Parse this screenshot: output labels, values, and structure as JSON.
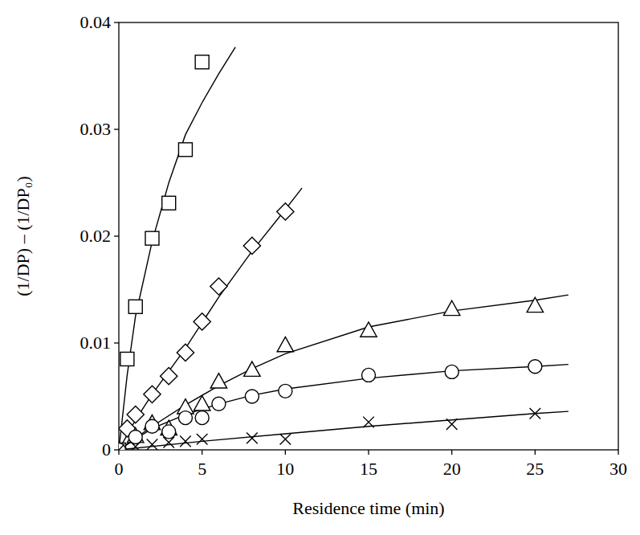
{
  "chart_data": {
    "type": "scatter",
    "x_label": "Residence time (min)",
    "y_label": "(1/DP) – (1/DP₀)",
    "xlim": [
      0,
      30
    ],
    "xticks": [
      0,
      5,
      10,
      15,
      20,
      25,
      30
    ],
    "ylim": [
      0,
      0.04
    ],
    "yticks": [
      0,
      0.01,
      0.02,
      0.03,
      0.04
    ],
    "grid": false,
    "series": [
      {
        "type": "scatter",
        "marker": "square",
        "color": "#000000",
        "x": [
          0,
          0.5,
          1,
          2,
          3,
          4,
          5
        ],
        "values": [
          0,
          0.0085,
          0.0134,
          0.0198,
          0.0231,
          0.0281,
          0.0363
        ]
      },
      {
        "type": "scatter",
        "marker": "diamond",
        "color": "#000000",
        "x": [
          0,
          0.5,
          1,
          2,
          3,
          4,
          5,
          6,
          8,
          10
        ],
        "values": [
          0,
          0.002,
          0.0033,
          0.0052,
          0.0069,
          0.0091,
          0.012,
          0.0153,
          0.0191,
          0.0223
        ]
      },
      {
        "type": "scatter",
        "marker": "triangle",
        "color": "#000000",
        "x": [
          0,
          1,
          2,
          3,
          4,
          5,
          6,
          8,
          10,
          15,
          20,
          25
        ],
        "values": [
          0,
          0.0013,
          0.0025,
          0.002,
          0.004,
          0.0043,
          0.0064,
          0.0075,
          0.0098,
          0.0112,
          0.0132,
          0.0135
        ]
      },
      {
        "type": "scatter",
        "marker": "circle",
        "color": "#000000",
        "x": [
          0,
          1,
          2,
          3,
          4,
          5,
          6,
          8,
          10,
          15,
          20,
          25
        ],
        "values": [
          0,
          0.0012,
          0.0022,
          0.0017,
          0.003,
          0.003,
          0.0043,
          0.005,
          0.0055,
          0.007,
          0.0073,
          0.0078
        ]
      },
      {
        "type": "scatter",
        "marker": "cross",
        "color": "#000000",
        "x": [
          0,
          1,
          2,
          3,
          4,
          5,
          8,
          10,
          15,
          20,
          25
        ],
        "values": [
          0,
          0.0003,
          0.0005,
          0.0007,
          0.0008,
          0.001,
          0.0011,
          0.001,
          0.0026,
          0.0024,
          0.0034
        ]
      },
      {
        "type": "line",
        "line_style": "solid",
        "color": "#000000",
        "x": [
          0,
          0.5,
          1,
          2,
          3,
          4,
          5,
          6,
          7
        ],
        "values": [
          0,
          0.007,
          0.0125,
          0.0195,
          0.025,
          0.0295,
          0.0325,
          0.0352,
          0.0377
        ]
      },
      {
        "type": "line",
        "line_style": "solid",
        "color": "#000000",
        "x": [
          0,
          1,
          2,
          4,
          6,
          8,
          10,
          11
        ],
        "values": [
          0,
          0.0028,
          0.0052,
          0.0095,
          0.0143,
          0.0186,
          0.0225,
          0.0245
        ]
      },
      {
        "type": "line",
        "line_style": "solid",
        "color": "#000000",
        "x": [
          0,
          2,
          4,
          6,
          8,
          10,
          15,
          20,
          25,
          27
        ],
        "values": [
          0,
          0.0022,
          0.0042,
          0.006,
          0.0076,
          0.009,
          0.0115,
          0.013,
          0.014,
          0.0145
        ]
      },
      {
        "type": "line",
        "line_style": "solid",
        "color": "#000000",
        "x": [
          0,
          2,
          4,
          6,
          8,
          10,
          15,
          20,
          25,
          27
        ],
        "values": [
          0,
          0.002,
          0.0033,
          0.0043,
          0.0051,
          0.0057,
          0.0067,
          0.0074,
          0.0078,
          0.008
        ]
      },
      {
        "type": "line",
        "line_style": "solid",
        "color": "#000000",
        "x": [
          0,
          5,
          10,
          15,
          20,
          25,
          27
        ],
        "values": [
          0,
          0.0008,
          0.0015,
          0.0022,
          0.0028,
          0.0034,
          0.0036
        ]
      }
    ]
  }
}
